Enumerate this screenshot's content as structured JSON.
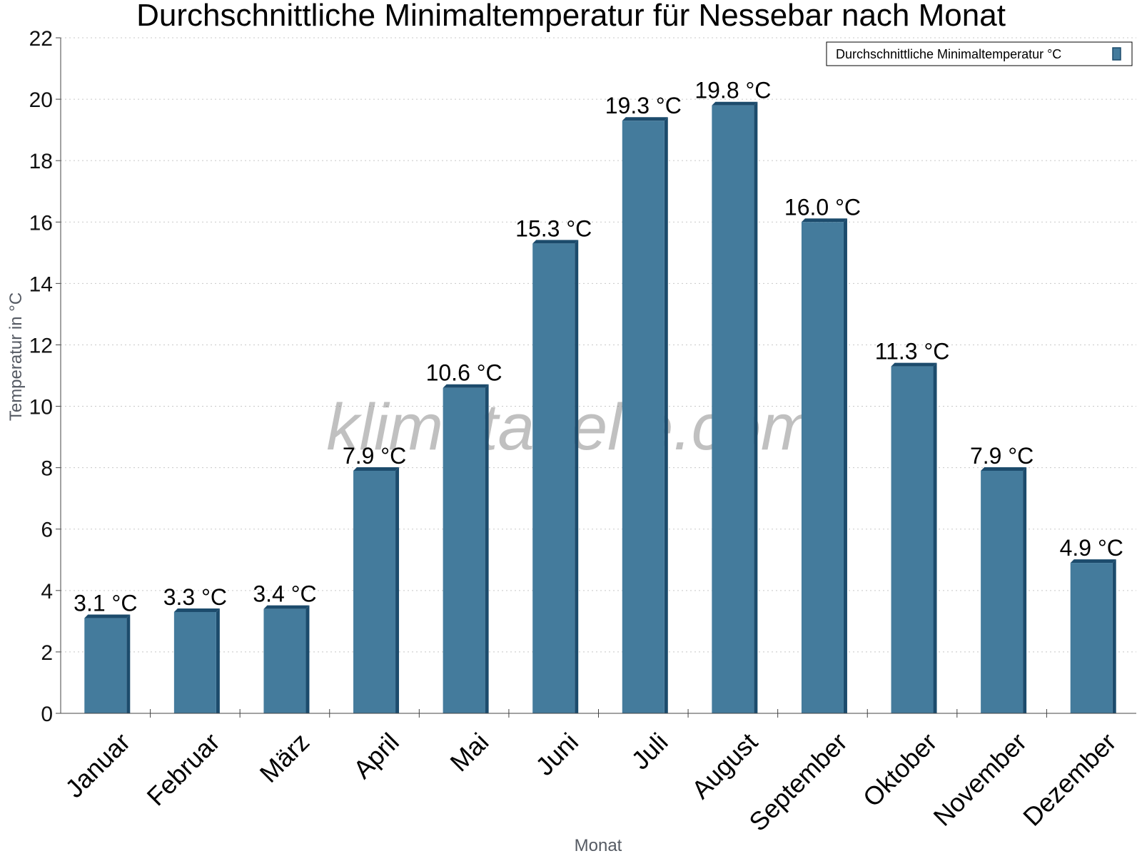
{
  "chart_data": {
    "type": "bar",
    "title": "Durchschnittliche Minimaltemperatur für Nessebar nach Monat",
    "xlabel": "Monat",
    "ylabel": "Temperatur in °C",
    "ylim": [
      0,
      22
    ],
    "yticks": [
      0,
      2,
      4,
      6,
      8,
      10,
      12,
      14,
      16,
      18,
      20,
      22
    ],
    "grid": true,
    "legend_position": "top-right",
    "categories": [
      "Januar",
      "Februar",
      "März",
      "April",
      "Mai",
      "Juni",
      "Juli",
      "August",
      "September",
      "Oktober",
      "November",
      "Dezember"
    ],
    "series": [
      {
        "name": "Durchschnittliche Minimaltemperatur °C",
        "values": [
          3.1,
          3.3,
          3.4,
          7.9,
          10.6,
          15.3,
          19.3,
          19.8,
          16.0,
          11.3,
          7.9,
          4.9
        ],
        "labels": [
          "3.1 °C",
          "3.3 °C",
          "3.4 °C",
          "7.9 °C",
          "10.6 °C",
          "15.3 °C",
          "19.3 °C",
          "19.8 °C",
          "16.0 °C",
          "11.3 °C",
          "7.9 °C",
          "4.9 °C"
        ],
        "color": "#447b9c",
        "side_color": "#1c4b6c"
      }
    ],
    "watermark": "klimatabelle.com"
  }
}
